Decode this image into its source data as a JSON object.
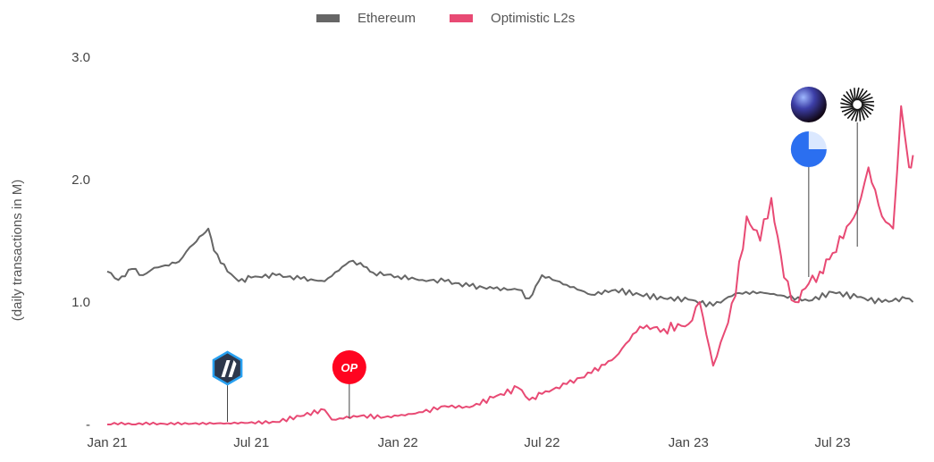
{
  "chart_data": {
    "type": "line",
    "ylabel": "(daily transactions in M)",
    "ylim": [
      0,
      3.0
    ],
    "y_ticks": [
      {
        "value": 0,
        "label": "-"
      },
      {
        "value": 1.0,
        "label": "1.0"
      },
      {
        "value": 2.0,
        "label": "2.0"
      },
      {
        "value": 3.0,
        "label": "3.0"
      }
    ],
    "x_ticks": [
      "Jan 21",
      "Jul 21",
      "Jan 22",
      "Jul 22",
      "Jan 23",
      "Jul 23"
    ],
    "x_tick_dates": [
      "2021-01-01",
      "2021-07-01",
      "2022-01-01",
      "2022-07-01",
      "2023-01-01",
      "2023-07-01"
    ],
    "xlim": [
      "2021-01-01",
      "2023-10-15"
    ],
    "legend_position": "top-center",
    "colors": {
      "ethereum": "#666666",
      "optimistic": "#e84a74"
    },
    "series": [
      {
        "name": "Ethereum",
        "x": [
          "2021-01-01",
          "2021-01-15",
          "2021-02-01",
          "2021-02-15",
          "2021-03-01",
          "2021-03-15",
          "2021-04-01",
          "2021-04-15",
          "2021-05-01",
          "2021-05-08",
          "2021-05-15",
          "2021-06-01",
          "2021-06-15",
          "2021-07-01",
          "2021-08-01",
          "2021-09-01",
          "2021-10-01",
          "2021-11-01",
          "2021-11-15",
          "2021-12-01",
          "2022-01-01",
          "2022-02-01",
          "2022-03-01",
          "2022-04-01",
          "2022-05-01",
          "2022-06-01",
          "2022-06-15",
          "2022-07-01",
          "2022-08-01",
          "2022-09-01",
          "2022-10-01",
          "2022-11-01",
          "2022-12-01",
          "2023-01-01",
          "2023-02-01",
          "2023-03-01",
          "2023-04-01",
          "2023-05-01",
          "2023-06-01",
          "2023-07-01",
          "2023-08-01",
          "2023-09-01",
          "2023-10-01",
          "2023-10-10"
        ],
        "values": [
          1.25,
          1.18,
          1.27,
          1.22,
          1.28,
          1.3,
          1.33,
          1.45,
          1.55,
          1.6,
          1.42,
          1.25,
          1.17,
          1.2,
          1.22,
          1.19,
          1.17,
          1.33,
          1.32,
          1.24,
          1.21,
          1.18,
          1.17,
          1.13,
          1.11,
          1.1,
          1.03,
          1.22,
          1.14,
          1.06,
          1.1,
          1.06,
          1.03,
          1.02,
          0.97,
          1.07,
          1.08,
          1.05,
          1.01,
          1.08,
          1.04,
          1.0,
          1.03,
          1.0
        ]
      },
      {
        "name": "Optimistic L2s",
        "x": [
          "2021-01-01",
          "2021-06-01",
          "2021-08-01",
          "2021-10-01",
          "2021-10-10",
          "2021-10-20",
          "2021-11-15",
          "2021-12-15",
          "2022-01-01",
          "2022-02-01",
          "2022-03-01",
          "2022-04-01",
          "2022-05-01",
          "2022-06-01",
          "2022-06-15",
          "2022-07-01",
          "2022-08-01",
          "2022-09-01",
          "2022-10-01",
          "2022-11-01",
          "2022-12-01",
          "2023-01-01",
          "2023-01-15",
          "2023-02-01",
          "2023-02-15",
          "2023-03-01",
          "2023-03-15",
          "2023-04-01",
          "2023-04-15",
          "2023-05-01",
          "2023-05-15",
          "2023-06-01",
          "2023-06-15",
          "2023-07-01",
          "2023-08-01",
          "2023-08-15",
          "2023-09-01",
          "2023-09-15",
          "2023-09-25",
          "2023-10-05",
          "2023-10-10"
        ],
        "values": [
          0,
          0.01,
          0.02,
          0.12,
          0.04,
          0.05,
          0.07,
          0.06,
          0.07,
          0.1,
          0.15,
          0.14,
          0.22,
          0.3,
          0.2,
          0.25,
          0.33,
          0.42,
          0.55,
          0.8,
          0.78,
          0.82,
          1.0,
          0.48,
          0.75,
          1.05,
          1.7,
          1.5,
          1.85,
          1.2,
          1.0,
          1.15,
          1.25,
          1.4,
          1.75,
          2.1,
          1.7,
          1.6,
          2.6,
          2.1,
          2.2
        ]
      }
    ],
    "annotations": [
      {
        "icon": "arbitrum-icon",
        "date": "2021-06-01"
      },
      {
        "icon": "optimism-op-icon",
        "date": "2021-11-01",
        "text": "OP"
      },
      {
        "icon": "sphere-icon",
        "date": "2023-06-01"
      },
      {
        "icon": "blue-circle-icon",
        "date": "2023-06-01"
      },
      {
        "icon": "zora-icon",
        "date": "2023-08-01"
      }
    ]
  }
}
